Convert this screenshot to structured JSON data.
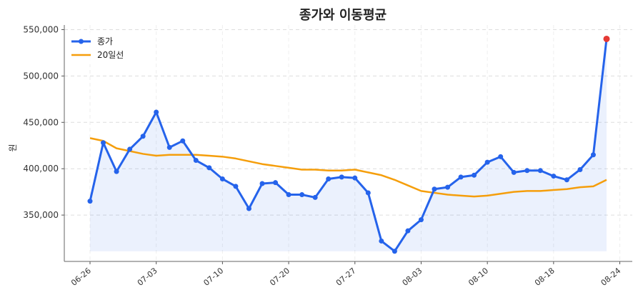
{
  "chart_data": {
    "type": "line",
    "title": "종가와 이동평균",
    "xlabel": "",
    "ylabel": "원",
    "ylim": [
      300000,
      555000
    ],
    "y_ticks": [
      350000,
      400000,
      450000,
      500000,
      550000
    ],
    "y_tick_labels": [
      "350,000",
      "400,000",
      "450,000",
      "500,000",
      "550,000"
    ],
    "x_tick_labels": [
      "06-26",
      "07-03",
      "07-10",
      "07-20",
      "07-27",
      "08-03",
      "08-10",
      "08-18",
      "08-24"
    ],
    "x_tick_index": [
      0,
      5,
      10,
      15,
      20,
      25,
      30,
      35,
      40
    ],
    "grid": true,
    "legend_position": "top-left",
    "series": [
      {
        "name": "종가",
        "color": "#2563eb",
        "marker": "circle",
        "fill_area": true,
        "values": [
          365000,
          428000,
          397000,
          421000,
          435000,
          461000,
          423000,
          430000,
          409000,
          401000,
          389000,
          381000,
          357000,
          384000,
          385000,
          372000,
          372000,
          369000,
          389000,
          391000,
          390000,
          374000,
          322000,
          311000,
          333000,
          345000,
          378000,
          380000,
          391000,
          393000,
          407000,
          413000,
          396000,
          398000,
          398000,
          392000,
          388000,
          399000,
          415000,
          540000
        ]
      },
      {
        "name": "20일선",
        "color": "#f59e0b",
        "marker": "none",
        "values": [
          433000,
          430000,
          422000,
          419000,
          416000,
          414000,
          415000,
          415000,
          415000,
          414000,
          413000,
          411000,
          408000,
          405000,
          403000,
          401000,
          399000,
          399000,
          398000,
          398000,
          399000,
          396000,
          393000,
          388000,
          382000,
          376000,
          374000,
          372000,
          371000,
          370000,
          371000,
          373000,
          375000,
          376000,
          376000,
          377000,
          378000,
          380000,
          381000,
          388000
        ]
      }
    ],
    "highlight_last_point": {
      "color": "#e53935"
    }
  }
}
